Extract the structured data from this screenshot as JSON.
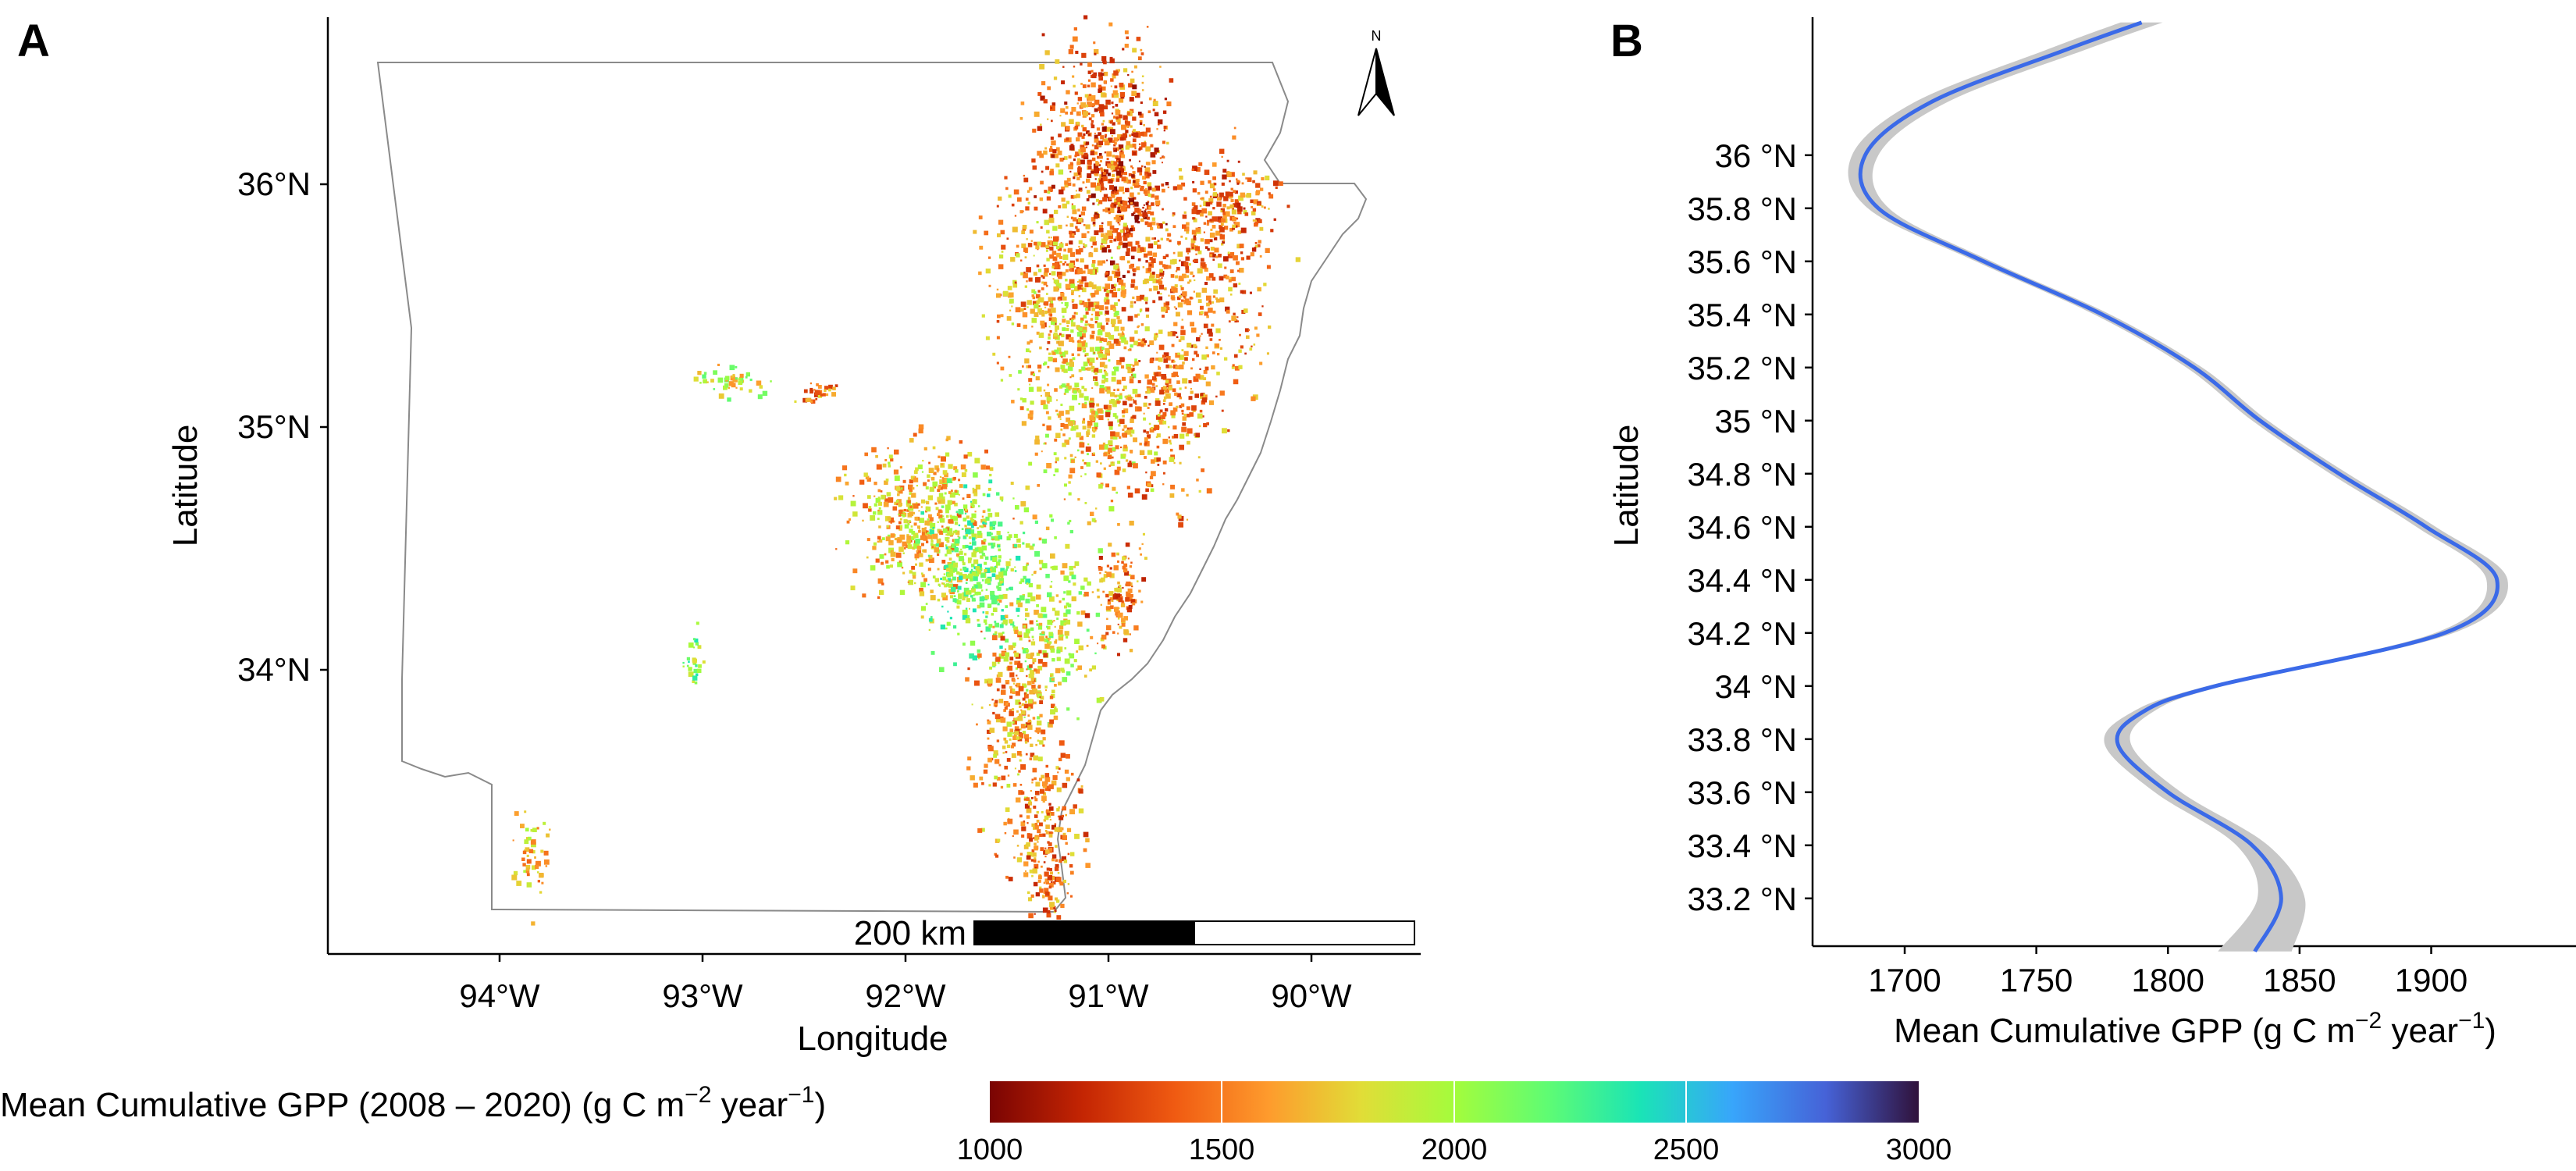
{
  "panels": {
    "a_label": "A",
    "b_label": "B"
  },
  "map": {
    "xlabel": "Longitude",
    "ylabel": "Latitude",
    "x_ticks": [
      "94°W",
      "93°W",
      "92°W",
      "91°W",
      "90°W"
    ],
    "y_ticks": [
      "36°N",
      "35°N",
      "34°N"
    ],
    "scalebar_label": "200 km",
    "north_label": "N"
  },
  "colorbar": {
    "title": "Mean Cumulative GPP (2008 – 2020) (g C m",
    "title_sup": "−2",
    "title_tail": " year",
    "title_sup2": "−1",
    "title_end": ")",
    "ticks": [
      "1000",
      "1500",
      "2000",
      "2500",
      "3000"
    ],
    "range": [
      1000,
      3000
    ]
  },
  "chart_data": [
    {
      "type": "heatmap",
      "title": "",
      "xlabel": "Longitude",
      "ylabel": "Latitude",
      "xlim": [
        -94.8,
        -89.4
      ],
      "ylim": [
        32.9,
        36.65
      ],
      "x_ticks": [
        -94,
        -93,
        -92,
        -91,
        -90
      ],
      "y_ticks": [
        36,
        35,
        34
      ],
      "value_range": [
        1000,
        3000
      ],
      "colorscale": "turbo (dark red low → dark purple high)"
    },
    {
      "type": "line",
      "title": "",
      "xlabel": "Mean Cumulative GPP (g C m",
      "xlabel_sup": "−2",
      "xlabel_tail": " year",
      "xlabel_sup2": "−1",
      "xlabel_end": ")",
      "ylabel": "Latitude",
      "xlim": [
        1665,
        1955
      ],
      "ylim": [
        33.02,
        36.52
      ],
      "x_ticks": [
        1700,
        1750,
        1800,
        1850,
        1900
      ],
      "y_ticks": [
        33.2,
        33.4,
        33.6,
        33.8,
        34,
        34.2,
        34.4,
        34.6,
        34.8,
        35,
        35.2,
        35.4,
        35.6,
        35.8,
        36
      ],
      "y_tick_labels": [
        "33.2 °N",
        "33.4 °N",
        "33.6 °N",
        "33.8 °N",
        "34 °N",
        "34.2 °N",
        "34.4 °N",
        "34.6 °N",
        "34.8 °N",
        "35 °N",
        "35.2 °N",
        "35.4 °N",
        "35.6 °N",
        "35.8 °N",
        "36 °N"
      ],
      "series": [
        {
          "color": "#3b6ae8",
          "points": [
            {
              "lat": 33.0,
              "gpp": 1833
            },
            {
              "lat": 33.2,
              "gpp": 1843
            },
            {
              "lat": 33.4,
              "gpp": 1832
            },
            {
              "lat": 33.6,
              "gpp": 1800
            },
            {
              "lat": 33.78,
              "gpp": 1781
            },
            {
              "lat": 33.9,
              "gpp": 1790
            },
            {
              "lat": 34.0,
              "gpp": 1818
            },
            {
              "lat": 34.2,
              "gpp": 1905
            },
            {
              "lat": 34.4,
              "gpp": 1925
            },
            {
              "lat": 34.6,
              "gpp": 1898
            },
            {
              "lat": 34.8,
              "gpp": 1865
            },
            {
              "lat": 35.0,
              "gpp": 1835
            },
            {
              "lat": 35.2,
              "gpp": 1810
            },
            {
              "lat": 35.4,
              "gpp": 1775
            },
            {
              "lat": 35.6,
              "gpp": 1730
            },
            {
              "lat": 35.8,
              "gpp": 1690
            },
            {
              "lat": 36.0,
              "gpp": 1685
            },
            {
              "lat": 36.2,
              "gpp": 1710
            },
            {
              "lat": 36.4,
              "gpp": 1762
            },
            {
              "lat": 36.5,
              "gpp": 1790
            }
          ],
          "ci_halfwidth": [
            {
              "lat": 33.0,
              "w": 14
            },
            {
              "lat": 33.2,
              "w": 9
            },
            {
              "lat": 33.4,
              "w": 6
            },
            {
              "lat": 33.6,
              "w": 5
            },
            {
              "lat": 33.78,
              "w": 5
            },
            {
              "lat": 34.0,
              "w": 3
            },
            {
              "lat": 34.4,
              "w": 4
            },
            {
              "lat": 35.0,
              "w": 3
            },
            {
              "lat": 35.6,
              "w": 3
            },
            {
              "lat": 36.0,
              "w": 5
            },
            {
              "lat": 36.5,
              "w": 8
            }
          ]
        }
      ]
    }
  ]
}
